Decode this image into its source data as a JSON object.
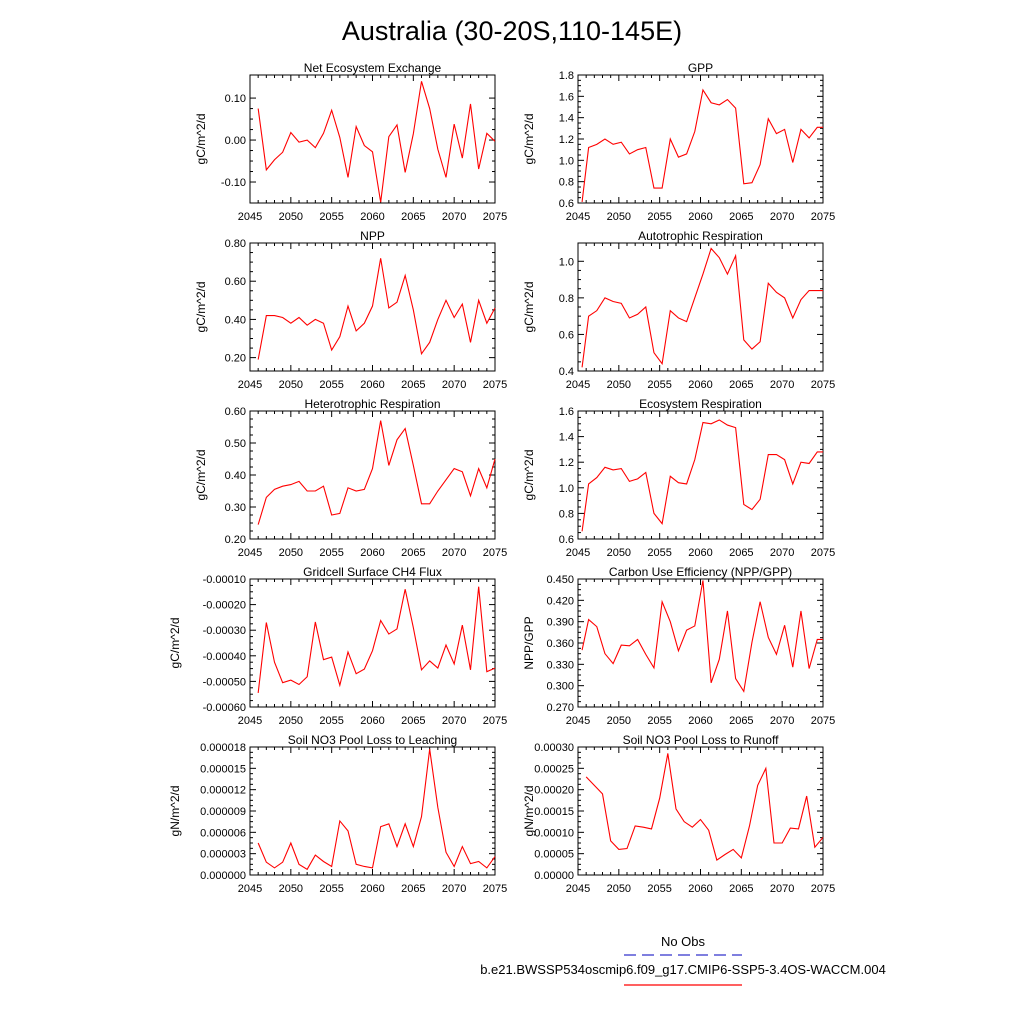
{
  "page": {
    "title": "Australia (30-20S,110-145E)",
    "legend": {
      "obs_label": "No Obs",
      "obs_color": "#3333cc",
      "model_label": "b.e21.BWSSP534oscmip6.f09_g17.CMIP6-SSP5-3.4OS-WACCM.004",
      "model_color": "#ff0000"
    }
  },
  "chart_data": [
    {
      "type": "line",
      "title": "Net Ecosystem Exchange",
      "ylabel": "gC/m^2/d",
      "xlim": [
        2045,
        2075
      ],
      "ylim": [
        -0.15,
        0.155
      ],
      "xticks": [
        "2045",
        "2050",
        "2055",
        "2060",
        "2065",
        "2070",
        "2075"
      ],
      "yticks": [
        {
          "v": -0.1,
          "label": "-0.10"
        },
        {
          "v": 0.0,
          "label": "0.00"
        },
        {
          "v": 0.1,
          "label": "0.10"
        }
      ],
      "x": [
        2046,
        2047,
        2048,
        2049,
        2050,
        2051,
        2052,
        2053,
        2054,
        2055,
        2056,
        2057,
        2058,
        2059,
        2060,
        2061,
        2062,
        2063,
        2064,
        2065,
        2066,
        2067,
        2068,
        2069,
        2070,
        2071,
        2072,
        2073,
        2074,
        2075
      ],
      "series": [
        {
          "color": "#ff0000",
          "values": [
            0.075,
            -0.071,
            -0.047,
            -0.029,
            0.018,
            -0.005,
            0.0,
            -0.018,
            0.016,
            0.071,
            0.006,
            -0.089,
            0.032,
            -0.013,
            -0.028,
            -0.148,
            0.008,
            0.036,
            -0.077,
            0.015,
            0.14,
            0.075,
            -0.022,
            -0.089,
            0.038,
            -0.043,
            0.086,
            -0.069,
            0.016,
            -0.003
          ]
        }
      ]
    },
    {
      "type": "line",
      "title": "GPP",
      "ylabel": "gC/m^2/d",
      "xlim": [
        2045,
        2075
      ],
      "ylim": [
        0.6,
        1.8
      ],
      "xticks": [
        "2045",
        "2050",
        "2055",
        "2060",
        "2065",
        "2070",
        "2075"
      ],
      "yticks": [
        {
          "v": 0.6,
          "label": "0.6"
        },
        {
          "v": 0.8,
          "label": "0.8"
        },
        {
          "v": 1.0,
          "label": "1.0"
        },
        {
          "v": 1.2,
          "label": "1.2"
        },
        {
          "v": 1.4,
          "label": "1.4"
        },
        {
          "v": 1.6,
          "label": "1.6"
        },
        {
          "v": 1.8,
          "label": "1.8"
        }
      ],
      "x": [
        2045.5,
        2046.3,
        2047.3,
        2048.3,
        2049.3,
        2050.3,
        2051.3,
        2052.3,
        2053.3,
        2054.3,
        2055.3,
        2056.3,
        2057.3,
        2058.3,
        2059.3,
        2060.3,
        2061.3,
        2062.3,
        2063.3,
        2064.3,
        2065.3,
        2066.3,
        2067.3,
        2068.3,
        2069.3,
        2070.3,
        2071.3,
        2072.3,
        2073.3,
        2074.3,
        2075
      ],
      "series": [
        {
          "color": "#ff0000",
          "values": [
            0.61,
            1.12,
            1.15,
            1.2,
            1.15,
            1.17,
            1.06,
            1.1,
            1.12,
            0.74,
            0.74,
            1.2,
            1.03,
            1.06,
            1.27,
            1.66,
            1.54,
            1.52,
            1.57,
            1.49,
            0.78,
            0.79,
            0.96,
            1.39,
            1.25,
            1.29,
            0.98,
            1.29,
            1.21,
            1.31,
            1.31
          ]
        }
      ]
    },
    {
      "type": "line",
      "title": "NPP",
      "ylabel": "gC/m^2/d",
      "xlim": [
        2045,
        2075
      ],
      "ylim": [
        0.13,
        0.8
      ],
      "xticks": [
        "2045",
        "2050",
        "2055",
        "2060",
        "2065",
        "2070",
        "2075"
      ],
      "yticks": [
        {
          "v": 0.2,
          "label": "0.20"
        },
        {
          "v": 0.4,
          "label": "0.40"
        },
        {
          "v": 0.6,
          "label": "0.60"
        },
        {
          "v": 0.8,
          "label": "0.80"
        }
      ],
      "x": [
        2046,
        2047,
        2048,
        2049,
        2050,
        2051,
        2052,
        2053,
        2054,
        2055,
        2056,
        2057,
        2058,
        2059,
        2060,
        2061,
        2062,
        2063,
        2064,
        2065,
        2066,
        2067,
        2068,
        2069,
        2070,
        2071,
        2072,
        2073,
        2074,
        2075
      ],
      "series": [
        {
          "color": "#ff0000",
          "values": [
            0.19,
            0.42,
            0.42,
            0.41,
            0.38,
            0.41,
            0.37,
            0.4,
            0.38,
            0.24,
            0.31,
            0.47,
            0.34,
            0.38,
            0.47,
            0.72,
            0.46,
            0.49,
            0.63,
            0.45,
            0.22,
            0.28,
            0.4,
            0.5,
            0.41,
            0.48,
            0.28,
            0.5,
            0.38,
            0.46
          ]
        }
      ]
    },
    {
      "type": "line",
      "title": "Autotrophic Respiration",
      "ylabel": "gC/m^2/d",
      "xlim": [
        2045,
        2075
      ],
      "ylim": [
        0.4,
        1.1
      ],
      "xticks": [
        "2045",
        "2050",
        "2055",
        "2060",
        "2065",
        "2070",
        "2075"
      ],
      "yticks": [
        {
          "v": 0.4,
          "label": "0.4"
        },
        {
          "v": 0.6,
          "label": "0.6"
        },
        {
          "v": 0.8,
          "label": "0.8"
        },
        {
          "v": 1.0,
          "label": "1.0"
        }
      ],
      "x": [
        2045.5,
        2046.3,
        2047.3,
        2048.3,
        2049.3,
        2050.3,
        2051.3,
        2052.3,
        2053.3,
        2054.3,
        2055.3,
        2056.3,
        2057.3,
        2058.3,
        2059.3,
        2060.3,
        2061.3,
        2062.3,
        2063.3,
        2064.3,
        2065.3,
        2066.3,
        2067.3,
        2068.3,
        2069.3,
        2070.3,
        2071.3,
        2072.3,
        2073.3,
        2074.3,
        2075
      ],
      "series": [
        {
          "color": "#ff0000",
          "values": [
            0.42,
            0.7,
            0.73,
            0.8,
            0.78,
            0.77,
            0.69,
            0.71,
            0.75,
            0.5,
            0.44,
            0.73,
            0.69,
            0.67,
            0.8,
            0.93,
            1.07,
            1.02,
            0.93,
            1.03,
            0.57,
            0.52,
            0.56,
            0.88,
            0.83,
            0.8,
            0.69,
            0.79,
            0.84,
            0.84,
            0.84
          ]
        }
      ]
    },
    {
      "type": "line",
      "title": "Heterotrophic Respiration",
      "ylabel": "gC/m^2/d",
      "xlim": [
        2045,
        2075
      ],
      "ylim": [
        0.2,
        0.6
      ],
      "xticks": [
        "2045",
        "2050",
        "2055",
        "2060",
        "2065",
        "2070",
        "2075"
      ],
      "yticks": [
        {
          "v": 0.2,
          "label": "0.20"
        },
        {
          "v": 0.3,
          "label": "0.30"
        },
        {
          "v": 0.4,
          "label": "0.40"
        },
        {
          "v": 0.5,
          "label": "0.50"
        },
        {
          "v": 0.6,
          "label": "0.60"
        }
      ],
      "x": [
        2046,
        2047,
        2048,
        2049,
        2050,
        2051,
        2052,
        2053,
        2054,
        2055,
        2056,
        2057,
        2058,
        2059,
        2060,
        2061,
        2062,
        2063,
        2064,
        2065,
        2066,
        2067,
        2068,
        2069,
        2070,
        2071,
        2072,
        2073,
        2074,
        2075
      ],
      "series": [
        {
          "color": "#ff0000",
          "values": [
            0.245,
            0.33,
            0.355,
            0.365,
            0.37,
            0.38,
            0.35,
            0.35,
            0.365,
            0.275,
            0.28,
            0.36,
            0.35,
            0.355,
            0.42,
            0.57,
            0.43,
            0.51,
            0.545,
            0.43,
            0.31,
            0.31,
            0.35,
            0.385,
            0.42,
            0.41,
            0.335,
            0.42,
            0.36,
            0.45
          ]
        }
      ]
    },
    {
      "type": "line",
      "title": "Ecosystem Respiration",
      "ylabel": "gC/m^2/d",
      "xlim": [
        2045,
        2075
      ],
      "ylim": [
        0.6,
        1.6
      ],
      "xticks": [
        "2045",
        "2050",
        "2055",
        "2060",
        "2065",
        "2070",
        "2075"
      ],
      "yticks": [
        {
          "v": 0.6,
          "label": "0.6"
        },
        {
          "v": 0.8,
          "label": "0.8"
        },
        {
          "v": 1.0,
          "label": "1.0"
        },
        {
          "v": 1.2,
          "label": "1.2"
        },
        {
          "v": 1.4,
          "label": "1.4"
        },
        {
          "v": 1.6,
          "label": "1.6"
        }
      ],
      "x": [
        2045.5,
        2046.3,
        2047.3,
        2048.3,
        2049.3,
        2050.3,
        2051.3,
        2052.3,
        2053.3,
        2054.3,
        2055.3,
        2056.3,
        2057.3,
        2058.3,
        2059.3,
        2060.3,
        2061.3,
        2062.3,
        2063.3,
        2064.3,
        2065.3,
        2066.3,
        2067.3,
        2068.3,
        2069.3,
        2070.3,
        2071.3,
        2072.3,
        2073.3,
        2074.3,
        2075
      ],
      "series": [
        {
          "color": "#ff0000",
          "values": [
            0.66,
            1.03,
            1.08,
            1.16,
            1.14,
            1.15,
            1.05,
            1.07,
            1.12,
            0.8,
            0.72,
            1.09,
            1.04,
            1.03,
            1.22,
            1.51,
            1.5,
            1.53,
            1.49,
            1.47,
            0.87,
            0.83,
            0.91,
            1.26,
            1.26,
            1.22,
            1.03,
            1.2,
            1.19,
            1.28,
            1.28
          ]
        }
      ]
    },
    {
      "type": "line",
      "title": "Gridcell Surface CH4 Flux",
      "ylabel": "gC/m^2/d",
      "xlim": [
        2045,
        2075
      ],
      "ylim": [
        -0.0006,
        -0.0001
      ],
      "xticks": [
        "2045",
        "2050",
        "2055",
        "2060",
        "2065",
        "2070",
        "2075"
      ],
      "yticks": [
        {
          "v": -0.0006,
          "label": "-0.00060"
        },
        {
          "v": -0.0005,
          "label": "-0.00050"
        },
        {
          "v": -0.0004,
          "label": "-0.00040"
        },
        {
          "v": -0.0003,
          "label": "-0.00030"
        },
        {
          "v": -0.0002,
          "label": "-0.00020"
        },
        {
          "v": -0.0001,
          "label": "-0.00010"
        }
      ],
      "x": [
        2046,
        2047,
        2048,
        2049,
        2050,
        2051,
        2052,
        2053,
        2054,
        2055,
        2056,
        2057,
        2058,
        2059,
        2060,
        2061,
        2062,
        2063,
        2064,
        2065,
        2066,
        2067,
        2068,
        2069,
        2070,
        2071,
        2072,
        2073,
        2074,
        2075
      ],
      "series": [
        {
          "color": "#ff0000",
          "values": [
            -0.000545,
            -0.00027,
            -0.000425,
            -0.000505,
            -0.000495,
            -0.000512,
            -0.000482,
            -0.000268,
            -0.000415,
            -0.000405,
            -0.000515,
            -0.000385,
            -0.00047,
            -0.000452,
            -0.00038,
            -0.000262,
            -0.000315,
            -0.000295,
            -0.00014,
            -0.00029,
            -0.000455,
            -0.00042,
            -0.000448,
            -0.000358,
            -0.000432,
            -0.00028,
            -0.000455,
            -0.00013,
            -0.000462,
            -0.000448
          ]
        }
      ]
    },
    {
      "type": "line",
      "title": "Carbon Use Efficiency (NPP/GPP)",
      "ylabel": "NPP/GPP",
      "xlim": [
        2045,
        2075
      ],
      "ylim": [
        0.27,
        0.45
      ],
      "xticks": [
        "2045",
        "2050",
        "2055",
        "2060",
        "2065",
        "2070",
        "2075"
      ],
      "yticks": [
        {
          "v": 0.27,
          "label": "0.270"
        },
        {
          "v": 0.3,
          "label": "0.300"
        },
        {
          "v": 0.33,
          "label": "0.330"
        },
        {
          "v": 0.36,
          "label": "0.360"
        },
        {
          "v": 0.39,
          "label": "0.390"
        },
        {
          "v": 0.42,
          "label": "0.420"
        },
        {
          "v": 0.45,
          "label": "0.450"
        }
      ],
      "x": [
        2045.5,
        2046.3,
        2047.3,
        2048.3,
        2049.3,
        2050.3,
        2051.3,
        2052.3,
        2053.3,
        2054.3,
        2055.3,
        2056.3,
        2057.3,
        2058.3,
        2059.3,
        2060.3,
        2061.3,
        2062.3,
        2063.3,
        2064.3,
        2065.3,
        2066.3,
        2067.3,
        2068.3,
        2069.3,
        2070.3,
        2071.3,
        2072.3,
        2073.3,
        2074.3,
        2075
      ],
      "series": [
        {
          "color": "#ff0000",
          "values": [
            0.35,
            0.393,
            0.383,
            0.345,
            0.331,
            0.357,
            0.356,
            0.365,
            0.344,
            0.325,
            0.418,
            0.39,
            0.349,
            0.378,
            0.384,
            0.448,
            0.304,
            0.337,
            0.405,
            0.31,
            0.292,
            0.361,
            0.418,
            0.368,
            0.344,
            0.385,
            0.326,
            0.405,
            0.324,
            0.365,
            0.365
          ]
        }
      ]
    },
    {
      "type": "line",
      "title": "Soil NO3 Pool Loss to Leaching",
      "ylabel": "gN/m^2/d",
      "xlim": [
        2045,
        2075
      ],
      "ylim": [
        0.0,
        1.8e-05
      ],
      "xticks": [
        "2045",
        "2050",
        "2055",
        "2060",
        "2065",
        "2070",
        "2075"
      ],
      "yticks": [
        {
          "v": 0.0,
          "label": "0.000000"
        },
        {
          "v": 3e-06,
          "label": "0.000003"
        },
        {
          "v": 6e-06,
          "label": "0.000006"
        },
        {
          "v": 9e-06,
          "label": "0.000009"
        },
        {
          "v": 1.2e-05,
          "label": "0.000012"
        },
        {
          "v": 1.5e-05,
          "label": "0.000015"
        },
        {
          "v": 1.8e-05,
          "label": "0.000018"
        }
      ],
      "x": [
        2046,
        2047,
        2048,
        2049,
        2050,
        2051,
        2052,
        2053,
        2054,
        2055,
        2056,
        2057,
        2058,
        2059,
        2060,
        2061,
        2062,
        2063,
        2064,
        2065,
        2066,
        2067,
        2068,
        2069,
        2070,
        2071,
        2072,
        2073,
        2074,
        2075
      ],
      "series": [
        {
          "color": "#ff0000",
          "values": [
            4.5e-06,
            1.8e-06,
            1e-06,
            1.8e-06,
            4.5e-06,
            1.5e-06,
            8e-07,
            2.8e-06,
            1.9e-06,
            1.2e-06,
            7.6e-06,
            6.2e-06,
            1.5e-06,
            1.2e-06,
            1e-06,
            6.8e-06,
            7.2e-06,
            4e-06,
            7.2e-06,
            4e-06,
            8.2e-06,
            1.77e-05,
            9.5e-06,
            3.2e-06,
            1.2e-06,
            4e-06,
            1.6e-06,
            1.9e-06,
            1e-06,
            2.6e-06
          ]
        }
      ]
    },
    {
      "type": "line",
      "title": "Soil NO3 Pool Loss to Runoff",
      "ylabel": "gN/m^2/d",
      "xlim": [
        2045,
        2075
      ],
      "ylim": [
        0.0,
        0.0003
      ],
      "xticks": [
        "2045",
        "2050",
        "2055",
        "2060",
        "2065",
        "2070",
        "2075"
      ],
      "yticks": [
        {
          "v": 0.0,
          "label": "0.00000"
        },
        {
          "v": 5e-05,
          "label": "0.00005"
        },
        {
          "v": 0.0001,
          "label": "0.00010"
        },
        {
          "v": 0.00015,
          "label": "0.00015"
        },
        {
          "v": 0.0002,
          "label": "0.00020"
        },
        {
          "v": 0.00025,
          "label": "0.00025"
        },
        {
          "v": 0.0003,
          "label": "0.00030"
        }
      ],
      "x": [
        2046,
        2047,
        2048,
        2049,
        2050,
        2051,
        2052,
        2053,
        2054,
        2055,
        2056,
        2057,
        2058,
        2059,
        2060,
        2061,
        2062,
        2063,
        2064,
        2065,
        2066,
        2067,
        2068,
        2069,
        2070,
        2071,
        2072,
        2073,
        2074,
        2075
      ],
      "series": [
        {
          "color": "#ff0000",
          "values": [
            0.00023,
            0.00021,
            0.00019,
            8e-05,
            6e-05,
            6.2e-05,
            0.000115,
            0.000112,
            0.000108,
            0.00018,
            0.000285,
            0.000155,
            0.000125,
            0.000112,
            0.00013,
            0.000105,
            3.5e-05,
            4.8e-05,
            6e-05,
            4e-05,
            0.000115,
            0.00021,
            0.00025,
            7.5e-05,
            7.5e-05,
            0.00011,
            0.000108,
            0.000185,
            6.5e-05,
            8.8e-05
          ]
        }
      ]
    }
  ]
}
